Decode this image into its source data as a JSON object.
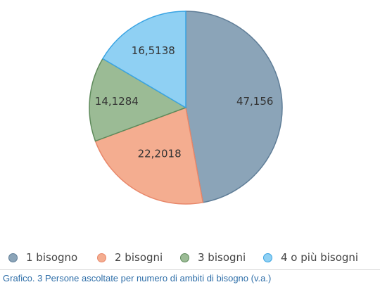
{
  "chart_data": {
    "type": "pie",
    "categories": [
      "1 bisogno",
      "2 bisogni",
      "3 bisogni",
      "4 o più bisogni"
    ],
    "values": [
      47.156,
      22.2018,
      14.1284,
      16.5138
    ],
    "value_labels": [
      "47,156",
      "22,2018",
      "14,1284",
      "16,5138"
    ],
    "colors": [
      "#8ba4b8",
      "#f4ad90",
      "#9bbb95",
      "#8fd0f3"
    ],
    "edge_colors": [
      "#5f7d97",
      "#e8876a",
      "#5e8a5b",
      "#3aa4e3"
    ],
    "legend_position": "bottom"
  },
  "caption": "Grafico. 3 Persone ascoltate per numero di ambiti di bisogno (v.a.)",
  "caption_color": "#2e6ea8"
}
